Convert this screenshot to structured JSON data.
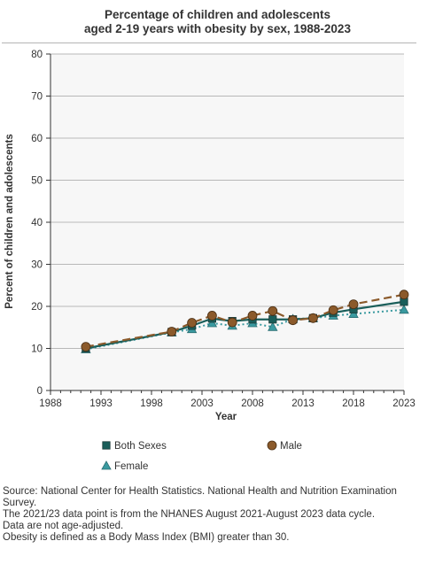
{
  "chart_data": {
    "type": "line",
    "title": "Percentage of children and adolescents aged 2-19 years with obesity by sex, 1988-2023",
    "title_lines": [
      "Percentage of children and adolescents",
      "aged 2-19 years with obesity by sex, 1988-2023"
    ],
    "xlabel": "Year",
    "ylabel": "Percent of children and adolescents",
    "xlim": [
      1988,
      2023
    ],
    "ylim": [
      0,
      80
    ],
    "x_ticks": [
      1988,
      1993,
      1998,
      2003,
      2008,
      2013,
      2018,
      2023
    ],
    "y_ticks": [
      0,
      10,
      20,
      30,
      40,
      50,
      60,
      70,
      80
    ],
    "grid": "horizontal",
    "legend_position": "bottom",
    "series": [
      {
        "name": "Both Sexes",
        "color": "#1a5e5a",
        "marker": "square",
        "style": "solid",
        "points": [
          [
            1991.5,
            10.0
          ],
          [
            2000,
            13.9
          ],
          [
            2002,
            15.4
          ],
          [
            2004,
            17.1
          ],
          [
            2006,
            16.5
          ],
          [
            2008,
            16.9
          ],
          [
            2010,
            16.9
          ],
          [
            2012,
            16.9
          ],
          [
            2014,
            17.2
          ],
          [
            2016,
            18.5
          ],
          [
            2018,
            19.3
          ],
          [
            2023,
            21.1
          ]
        ]
      },
      {
        "name": "Male",
        "color": "#8b5a2b",
        "marker": "circle",
        "style": "dashed",
        "points": [
          [
            1991.5,
            10.4
          ],
          [
            2000,
            14.0
          ],
          [
            2002,
            16.1
          ],
          [
            2004,
            17.8
          ],
          [
            2006,
            16.2
          ],
          [
            2008,
            17.8
          ],
          [
            2010,
            18.9
          ],
          [
            2012,
            16.7
          ],
          [
            2014,
            17.2
          ],
          [
            2016,
            19.1
          ],
          [
            2018,
            20.5
          ],
          [
            2023,
            22.8
          ]
        ]
      },
      {
        "name": "Female",
        "color": "#3a9aa0",
        "marker": "triangle",
        "style": "dotted",
        "points": [
          [
            1991.5,
            9.8
          ],
          [
            2000,
            13.8
          ],
          [
            2002,
            14.6
          ],
          [
            2004,
            16.0
          ],
          [
            2006,
            15.4
          ],
          [
            2008,
            16.0
          ],
          [
            2010,
            15.1
          ],
          [
            2012,
            17.0
          ],
          [
            2014,
            17.2
          ],
          [
            2016,
            17.8
          ],
          [
            2018,
            18.2
          ],
          [
            2023,
            19.2
          ]
        ]
      }
    ]
  },
  "notes": [
    "Source: National Center for Health Statistics. National Health and Nutrition Examination Survey.",
    "The 2021/23 data point is from the NHANES August 2021-August 2023 data cycle.",
    "Data are not age-adjusted.",
    "Obesity is defined as a Body Mass Index (BMI) greater than 30."
  ]
}
